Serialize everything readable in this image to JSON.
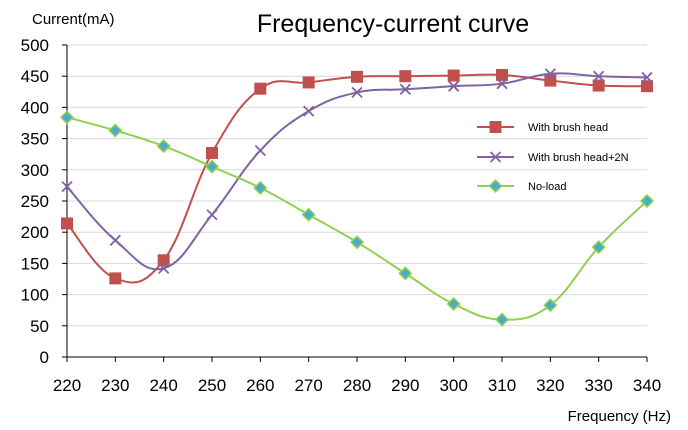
{
  "chart_data": {
    "type": "line",
    "title": "Frequency-current curve",
    "xlabel": "Frequency (Hz)",
    "ylabel": "Current(mA)",
    "x": [
      220,
      230,
      240,
      250,
      260,
      270,
      280,
      290,
      300,
      310,
      320,
      330,
      340
    ],
    "xlim": [
      220,
      340
    ],
    "ylim": [
      0,
      500
    ],
    "yticks": [
      0,
      50,
      100,
      150,
      200,
      250,
      300,
      350,
      400,
      450,
      500
    ],
    "grid": "horizontal",
    "legend_position": "right",
    "series": [
      {
        "name": "With brush head",
        "color": "#C0504D",
        "marker": "square",
        "values": [
          214,
          126,
          155,
          327,
          430,
          440,
          449,
          450,
          451,
          452,
          443,
          435,
          434
        ]
      },
      {
        "name": "With brush head+2N",
        "color": "#8064A2",
        "marker": "x",
        "values": [
          273,
          187,
          142,
          228,
          331,
          394,
          424,
          429,
          434,
          438,
          454,
          450,
          448
        ]
      },
      {
        "name": "No-load",
        "color": "#92D050",
        "marker": "diamond",
        "values": [
          384,
          363,
          338,
          305,
          271,
          228,
          184,
          134,
          85,
          60,
          83,
          176,
          250
        ]
      }
    ]
  }
}
